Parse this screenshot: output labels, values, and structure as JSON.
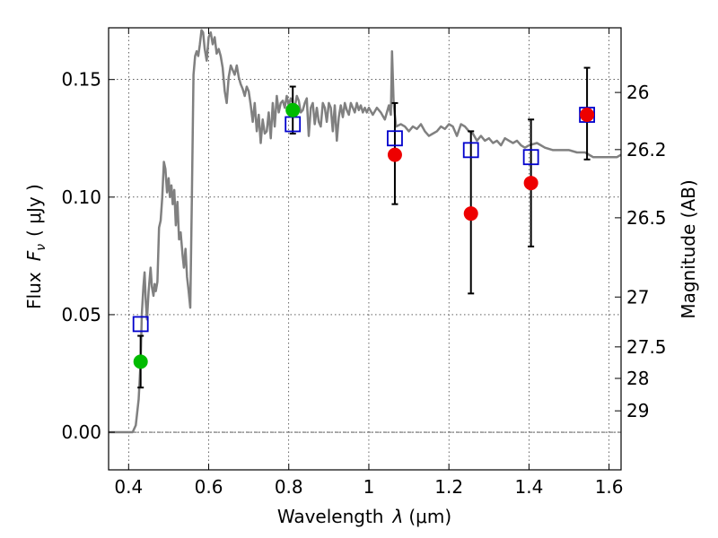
{
  "chart_data": {
    "type": "scatter",
    "xlabel_text": "Wavelength",
    "xlabel_symbol": "λ",
    "xlabel_unit": "(μm)",
    "ylabel_text": "Flux",
    "ylabel_symbol": "F",
    "ylabel_sub": "ν",
    "ylabel_unit": "( μJy )",
    "y2label": "Magnitude (AB)",
    "xlim": [
      0.35,
      1.63
    ],
    "ylim": [
      -0.016,
      0.172
    ],
    "grid": true,
    "x_ticks": [
      {
        "value": 0.4,
        "label": "0.4"
      },
      {
        "value": 0.6,
        "label": "0.6"
      },
      {
        "value": 0.8,
        "label": "0.8"
      },
      {
        "value": 1.0,
        "label": "1"
      },
      {
        "value": 1.2,
        "label": "1.2"
      },
      {
        "value": 1.4,
        "label": "1.4"
      },
      {
        "value": 1.6,
        "label": "1.6"
      }
    ],
    "y_ticks": [
      {
        "value": 0.0,
        "label": "0.00"
      },
      {
        "value": 0.05,
        "label": "0.05"
      },
      {
        "value": 0.1,
        "label": "0.10"
      },
      {
        "value": 0.15,
        "label": "0.15"
      }
    ],
    "mag_ticks": [
      {
        "flux": 0.1445,
        "label": "26"
      },
      {
        "flux": 0.1202,
        "label": "26.2"
      },
      {
        "flux": 0.0912,
        "label": "26.5"
      },
      {
        "flux": 0.0575,
        "label": "27"
      },
      {
        "flux": 0.0363,
        "label": "27.5"
      },
      {
        "flux": 0.0229,
        "label": "28"
      },
      {
        "flux": 0.0091,
        "label": "29"
      }
    ],
    "series": [
      {
        "kind": "model_spectrum",
        "color": "#808080",
        "points": [
          [
            0.35,
            0.0
          ],
          [
            0.4,
            0.0
          ],
          [
            0.41,
            0.0
          ],
          [
            0.418,
            0.003
          ],
          [
            0.425,
            0.014
          ],
          [
            0.43,
            0.03
          ],
          [
            0.433,
            0.05
          ],
          [
            0.437,
            0.062
          ],
          [
            0.44,
            0.068
          ],
          [
            0.443,
            0.055
          ],
          [
            0.446,
            0.048
          ],
          [
            0.45,
            0.06
          ],
          [
            0.455,
            0.07
          ],
          [
            0.458,
            0.062
          ],
          [
            0.462,
            0.058
          ],
          [
            0.465,
            0.063
          ],
          [
            0.468,
            0.06
          ],
          [
            0.472,
            0.064
          ],
          [
            0.476,
            0.087
          ],
          [
            0.48,
            0.09
          ],
          [
            0.484,
            0.1
          ],
          [
            0.488,
            0.115
          ],
          [
            0.492,
            0.112
          ],
          [
            0.496,
            0.102
          ],
          [
            0.5,
            0.108
          ],
          [
            0.503,
            0.1
          ],
          [
            0.507,
            0.105
          ],
          [
            0.51,
            0.097
          ],
          [
            0.514,
            0.103
          ],
          [
            0.518,
            0.088
          ],
          [
            0.522,
            0.098
          ],
          [
            0.526,
            0.082
          ],
          [
            0.53,
            0.085
          ],
          [
            0.535,
            0.075
          ],
          [
            0.538,
            0.07
          ],
          [
            0.542,
            0.078
          ],
          [
            0.546,
            0.066
          ],
          [
            0.55,
            0.06
          ],
          [
            0.554,
            0.053
          ],
          [
            0.558,
            0.1
          ],
          [
            0.562,
            0.152
          ],
          [
            0.566,
            0.16
          ],
          [
            0.57,
            0.162
          ],
          [
            0.574,
            0.16
          ],
          [
            0.578,
            0.165
          ],
          [
            0.582,
            0.171
          ],
          [
            0.586,
            0.17
          ],
          [
            0.59,
            0.163
          ],
          [
            0.595,
            0.158
          ],
          [
            0.6,
            0.168
          ],
          [
            0.605,
            0.17
          ],
          [
            0.61,
            0.165
          ],
          [
            0.615,
            0.168
          ],
          [
            0.62,
            0.161
          ],
          [
            0.625,
            0.163
          ],
          [
            0.63,
            0.16
          ],
          [
            0.635,
            0.155
          ],
          [
            0.64,
            0.145
          ],
          [
            0.645,
            0.14
          ],
          [
            0.65,
            0.151
          ],
          [
            0.655,
            0.156
          ],
          [
            0.66,
            0.154
          ],
          [
            0.665,
            0.152
          ],
          [
            0.67,
            0.156
          ],
          [
            0.675,
            0.151
          ],
          [
            0.68,
            0.148
          ],
          [
            0.685,
            0.146
          ],
          [
            0.69,
            0.143
          ],
          [
            0.695,
            0.147
          ],
          [
            0.7,
            0.145
          ],
          [
            0.705,
            0.139
          ],
          [
            0.71,
            0.132
          ],
          [
            0.715,
            0.14
          ],
          [
            0.72,
            0.128
          ],
          [
            0.725,
            0.135
          ],
          [
            0.73,
            0.123
          ],
          [
            0.735,
            0.133
          ],
          [
            0.74,
            0.127
          ],
          [
            0.745,
            0.128
          ],
          [
            0.75,
            0.136
          ],
          [
            0.755,
            0.125
          ],
          [
            0.76,
            0.14
          ],
          [
            0.765,
            0.13
          ],
          [
            0.77,
            0.143
          ],
          [
            0.775,
            0.136
          ],
          [
            0.78,
            0.14
          ],
          [
            0.785,
            0.141
          ],
          [
            0.79,
            0.138
          ],
          [
            0.795,
            0.143
          ],
          [
            0.8,
            0.139
          ],
          [
            0.805,
            0.142
          ],
          [
            0.81,
            0.14
          ],
          [
            0.815,
            0.138
          ],
          [
            0.82,
            0.143
          ],
          [
            0.825,
            0.141
          ],
          [
            0.83,
            0.136
          ],
          [
            0.835,
            0.137
          ],
          [
            0.84,
            0.14
          ],
          [
            0.845,
            0.142
          ],
          [
            0.85,
            0.126
          ],
          [
            0.855,
            0.138
          ],
          [
            0.86,
            0.14
          ],
          [
            0.865,
            0.131
          ],
          [
            0.87,
            0.138
          ],
          [
            0.875,
            0.132
          ],
          [
            0.88,
            0.13
          ],
          [
            0.885,
            0.14
          ],
          [
            0.89,
            0.138
          ],
          [
            0.895,
            0.132
          ],
          [
            0.9,
            0.14
          ],
          [
            0.905,
            0.138
          ],
          [
            0.91,
            0.128
          ],
          [
            0.915,
            0.139
          ],
          [
            0.92,
            0.124
          ],
          [
            0.925,
            0.134
          ],
          [
            0.93,
            0.139
          ],
          [
            0.935,
            0.134
          ],
          [
            0.94,
            0.14
          ],
          [
            0.945,
            0.137
          ],
          [
            0.95,
            0.135
          ],
          [
            0.955,
            0.14
          ],
          [
            0.96,
            0.138
          ],
          [
            0.965,
            0.136
          ],
          [
            0.97,
            0.14
          ],
          [
            0.975,
            0.137
          ],
          [
            0.98,
            0.139
          ],
          [
            0.985,
            0.136
          ],
          [
            0.99,
            0.138
          ],
          [
            0.995,
            0.136
          ],
          [
            1.0,
            0.138
          ],
          [
            1.01,
            0.135
          ],
          [
            1.02,
            0.138
          ],
          [
            1.03,
            0.136
          ],
          [
            1.04,
            0.133
          ],
          [
            1.05,
            0.139
          ],
          [
            1.055,
            0.135
          ],
          [
            1.058,
            0.162
          ],
          [
            1.062,
            0.14
          ],
          [
            1.068,
            0.13
          ],
          [
            1.08,
            0.131
          ],
          [
            1.09,
            0.13
          ],
          [
            1.1,
            0.128
          ],
          [
            1.11,
            0.13
          ],
          [
            1.12,
            0.129
          ],
          [
            1.13,
            0.131
          ],
          [
            1.14,
            0.128
          ],
          [
            1.15,
            0.126
          ],
          [
            1.16,
            0.127
          ],
          [
            1.17,
            0.128
          ],
          [
            1.18,
            0.13
          ],
          [
            1.19,
            0.129
          ],
          [
            1.2,
            0.131
          ],
          [
            1.21,
            0.13
          ],
          [
            1.22,
            0.126
          ],
          [
            1.23,
            0.131
          ],
          [
            1.24,
            0.13
          ],
          [
            1.25,
            0.128
          ],
          [
            1.26,
            0.127
          ],
          [
            1.27,
            0.124
          ],
          [
            1.28,
            0.126
          ],
          [
            1.29,
            0.124
          ],
          [
            1.3,
            0.125
          ],
          [
            1.31,
            0.123
          ],
          [
            1.32,
            0.124
          ],
          [
            1.33,
            0.122
          ],
          [
            1.34,
            0.125
          ],
          [
            1.35,
            0.124
          ],
          [
            1.36,
            0.123
          ],
          [
            1.37,
            0.124
          ],
          [
            1.38,
            0.122
          ],
          [
            1.39,
            0.121
          ],
          [
            1.4,
            0.122
          ],
          [
            1.42,
            0.123
          ],
          [
            1.44,
            0.121
          ],
          [
            1.46,
            0.12
          ],
          [
            1.48,
            0.12
          ],
          [
            1.5,
            0.12
          ],
          [
            1.52,
            0.119
          ],
          [
            1.54,
            0.119
          ],
          [
            1.56,
            0.117
          ],
          [
            1.58,
            0.117
          ],
          [
            1.6,
            0.117
          ],
          [
            1.62,
            0.117
          ],
          [
            1.63,
            0.118
          ]
        ]
      },
      {
        "kind": "model_photometry",
        "color": "#0000cc",
        "points": [
          [
            0.43,
            0.046
          ],
          [
            0.81,
            0.131
          ],
          [
            1.065,
            0.125
          ],
          [
            1.255,
            0.12
          ],
          [
            1.405,
            0.117
          ],
          [
            1.545,
            0.135
          ]
        ]
      },
      {
        "kind": "observed_detections",
        "color": "#00bb00",
        "points": [
          [
            0.43,
            0.03
          ],
          [
            0.81,
            0.137
          ]
        ]
      },
      {
        "kind": "observed_fluxes",
        "color": "#ee0000",
        "points": [
          [
            1.065,
            0.118
          ],
          [
            1.255,
            0.093
          ],
          [
            1.405,
            0.106
          ],
          [
            1.545,
            0.135
          ]
        ]
      },
      {
        "kind": "error_bars",
        "color": "#000000",
        "bars": [
          [
            0.43,
            0.019,
            0.041
          ],
          [
            0.81,
            0.127,
            0.147
          ],
          [
            1.065,
            0.097,
            0.14
          ],
          [
            1.255,
            0.059,
            0.128
          ],
          [
            1.405,
            0.079,
            0.133
          ],
          [
            1.545,
            0.116,
            0.155
          ]
        ]
      }
    ]
  }
}
